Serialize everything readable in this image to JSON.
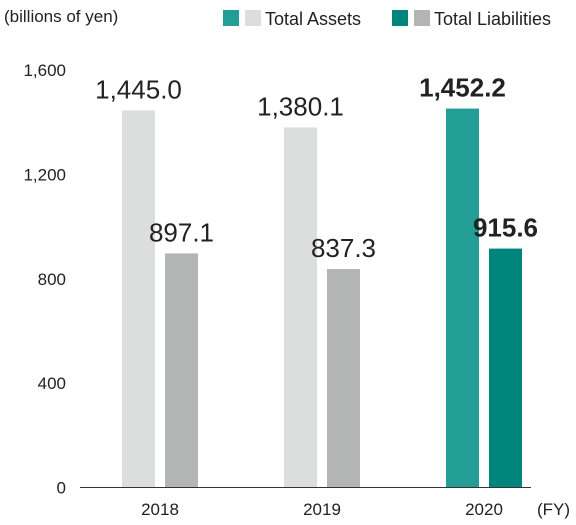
{
  "chart_data": {
    "type": "bar",
    "unit_label": "(billions of yen)",
    "x_suffix": "(FY)",
    "categories": [
      "2018",
      "2019",
      "2020"
    ],
    "series": [
      {
        "name": "Total Assets",
        "values": [
          1445.0,
          1380.1,
          1452.2
        ],
        "value_labels": [
          "1,445.0",
          "1,380.1",
          "1,452.2"
        ],
        "colors": [
          "#dcdddd",
          "#dcdddd",
          "#229e96"
        ]
      },
      {
        "name": "Total Liabilities",
        "values": [
          897.1,
          837.3,
          915.6
        ],
        "value_labels": [
          "897.1",
          "837.3",
          "915.6"
        ],
        "colors": [
          "#b3b4b4",
          "#b3b4b4",
          "#00857c"
        ]
      }
    ],
    "highlight_category": "2020",
    "ylim": [
      0,
      1600
    ],
    "yticks": [
      0,
      400,
      800,
      1200,
      1600
    ],
    "ytick_labels": [
      "0",
      "400",
      "800",
      "1,200",
      "1,600"
    ],
    "grid": false,
    "legend": {
      "placement": "top-right",
      "entries": [
        {
          "label": "Total Assets",
          "swatches": [
            "#229e96",
            "#dcdddd"
          ]
        },
        {
          "label": "Total Liabilities",
          "swatches": [
            "#00857c",
            "#b3b4b4"
          ]
        }
      ]
    }
  }
}
